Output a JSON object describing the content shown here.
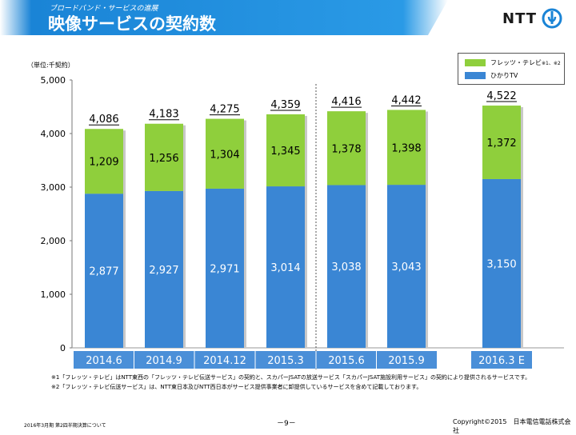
{
  "header": {
    "subtitle": "ブロードバンド・サービスの進展",
    "title": "映像サービスの契約数",
    "logo_text": "NTT",
    "band_color": "#1a84d6"
  },
  "legend": {
    "items": [
      {
        "label": "フレッツ・テレビ",
        "note": "※1、※2",
        "color": "#8fcf3c"
      },
      {
        "label": "ひかりTV",
        "note": "",
        "color": "#3a86d4"
      }
    ]
  },
  "chart_data": {
    "type": "bar",
    "stacked": true,
    "unit_label": "（単位:千契約）",
    "categories": [
      "2014.6",
      "2014.9",
      "2014.12",
      "2015.3",
      "2015.6",
      "2015.9",
      "2016.3 E"
    ],
    "series": [
      {
        "name": "ひかりTV",
        "values": [
          2877,
          2927,
          2971,
          3014,
          3038,
          3043,
          3150
        ],
        "labels": [
          "2,877",
          "2,927",
          "2,971",
          "3,014",
          "3,038",
          "3,043",
          "3,150"
        ],
        "color": "#3a86d4"
      },
      {
        "name": "フレッツ・テレビ",
        "values": [
          1209,
          1256,
          1304,
          1345,
          1378,
          1398,
          1372
        ],
        "labels": [
          "1,209",
          "1,256",
          "1,304",
          "1,345",
          "1,378",
          "1,398",
          "1,372"
        ],
        "color": "#8fcf3c"
      }
    ],
    "totals": [
      "4,086",
      "4,183",
      "4,275",
      "4,359",
      "4,416",
      "4,442",
      "4,522"
    ],
    "ylim": [
      0,
      5000
    ],
    "yticks": [
      0,
      1000,
      2000,
      3000,
      4000,
      5000
    ],
    "ytick_labels": [
      "0",
      "1,000",
      "2,000",
      "3,000",
      "4,000",
      "5,000"
    ],
    "grid": false,
    "legend_position": "top-right",
    "category_bar_color": "#4a8fd8",
    "divider_after_category": "2015.3"
  },
  "footnotes": [
    "※1「フレッツ・テレビ」はNTT東西の「フレッツ・テレビ伝送サービス」の契約と、スカパーJSATの放送サービス「スカパーJSAT施設利用サービス」の契約により提供されるサービスです。",
    "※2「フレッツ・テレビ伝送サービス」は、NTT東日本及びNTT西日本がサービス提供事業者に卸提供しているサービスを含めて記載しております。"
  ],
  "footer": {
    "left": "2016年3月期 第2四半期決算について",
    "page": "－9－",
    "right": "Copyright©2015　日本電信電話株式会社"
  }
}
